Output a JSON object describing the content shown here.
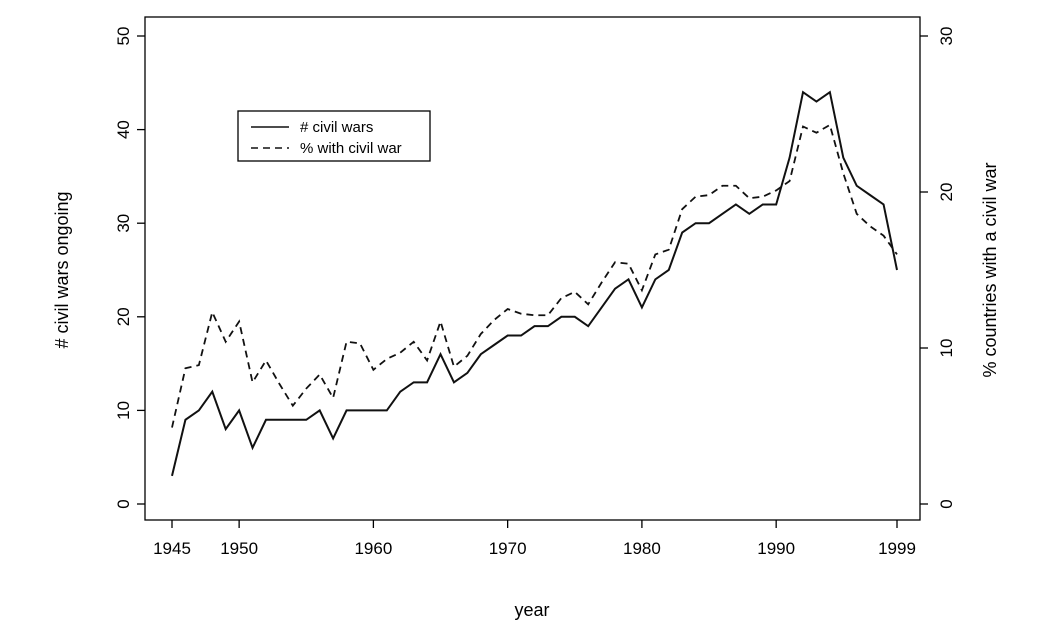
{
  "chart_data": {
    "type": "line",
    "xlabel": "year",
    "ylabel": "# civil wars ongoing",
    "y2label": "% countries with a civil war",
    "xlim": [
      1945,
      1999
    ],
    "ylim": [
      0,
      50
    ],
    "y2lim": [
      0,
      30
    ],
    "x_ticks": [
      1945,
      1950,
      1960,
      1970,
      1980,
      1990,
      1999
    ],
    "y_ticks": [
      0,
      10,
      20,
      30,
      40,
      50
    ],
    "y2_ticks": [
      0,
      10,
      20,
      30
    ],
    "grid": false,
    "legend_position": "top-left",
    "x": [
      1945,
      1946,
      1947,
      1948,
      1949,
      1950,
      1951,
      1952,
      1953,
      1954,
      1955,
      1956,
      1957,
      1958,
      1959,
      1960,
      1961,
      1962,
      1963,
      1964,
      1965,
      1966,
      1967,
      1968,
      1969,
      1970,
      1971,
      1972,
      1973,
      1974,
      1975,
      1976,
      1977,
      1978,
      1979,
      1980,
      1981,
      1982,
      1983,
      1984,
      1985,
      1986,
      1987,
      1988,
      1989,
      1990,
      1991,
      1992,
      1993,
      1994,
      1995,
      1996,
      1997,
      1998,
      1999
    ],
    "series": [
      {
        "name": "# civil wars",
        "axis": "left",
        "style": "solid",
        "values": [
          3,
          9,
          10,
          12,
          8,
          10,
          6,
          9,
          9,
          9,
          9,
          10,
          7,
          10,
          10,
          10,
          10,
          12,
          13,
          13,
          16,
          13,
          14,
          16,
          17,
          18,
          18,
          19,
          19,
          20,
          20,
          19,
          21,
          23,
          24,
          21,
          24,
          25,
          29,
          30,
          30,
          31,
          32,
          31,
          32,
          32,
          37,
          44,
          43,
          44,
          37,
          34,
          33,
          32,
          25
        ]
      },
      {
        "name": "% with civil war",
        "axis": "right",
        "style": "dashed",
        "values": [
          4.9,
          8.7,
          8.9,
          12.3,
          10.4,
          11.7,
          7.8,
          9.2,
          7.7,
          6.3,
          7.4,
          8.3,
          6.8,
          10.4,
          10.3,
          8.6,
          9.3,
          9.7,
          10.4,
          9.2,
          11.7,
          8.8,
          9.5,
          10.9,
          11.8,
          12.5,
          12.2,
          12.1,
          12.1,
          13.2,
          13.6,
          12.8,
          14.2,
          15.5,
          15.4,
          13.7,
          16.0,
          16.3,
          18.9,
          19.7,
          19.8,
          20.4,
          20.4,
          19.6,
          19.7,
          20.1,
          20.7,
          24.2,
          23.8,
          24.3,
          21.2,
          18.6,
          17.8,
          17.2,
          16.0
        ]
      }
    ]
  }
}
